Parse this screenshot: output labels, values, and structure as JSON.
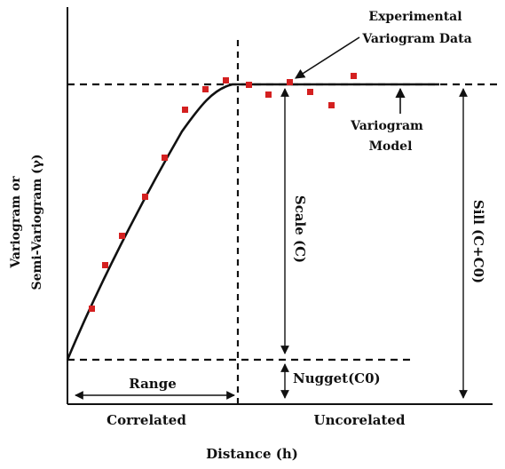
{
  "diagram": {
    "ylabel_line1": "Variogram or",
    "ylabel_line2": "Semi-Variogram (γ)",
    "xlabel": "Distance (h)",
    "annotation_data_line1": "Experimental",
    "annotation_data_line2": "Variogram Data",
    "annotation_model_line1": "Variogram",
    "annotation_model_line2": "Model",
    "range_label": "Range",
    "scale_label": "Scale (C)",
    "sill_label": "Sill (C+C0)",
    "nugget_label": "Nugget(C0)",
    "correlated_label": "Correlated",
    "uncorrelated_label": "Uncorelated",
    "colors": {
      "points": "#d42020",
      "lines": "#111111",
      "background": "#ffffff"
    }
  }
}
